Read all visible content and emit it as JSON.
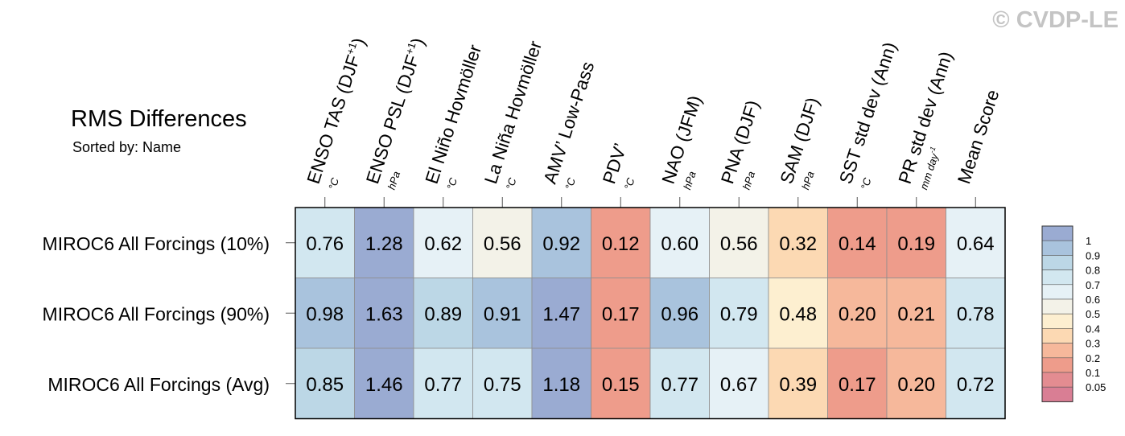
{
  "watermark": "© CVDP-LE",
  "title": "RMS Differences",
  "subtitle": "Sorted by: Name",
  "chart_data": {
    "type": "heatmap",
    "columns": [
      {
        "name": "ENSO TAS (DJF",
        "sup": "+1",
        "close": ")",
        "unit": "°C"
      },
      {
        "name": "ENSO PSL (DJF",
        "sup": "+1",
        "close": ")",
        "unit": "hPa"
      },
      {
        "name": "El Niño Hovmöller",
        "unit": "°C"
      },
      {
        "name": "La Niña Hovmöller",
        "unit": "°C"
      },
      {
        "name": "AMV’ Low-Pass",
        "unit": "°C"
      },
      {
        "name": "PDV’",
        "unit": "°C"
      },
      {
        "name": "NAO (JFM)",
        "unit": "hPa"
      },
      {
        "name": "PNA (DJF)",
        "unit": "hPa"
      },
      {
        "name": "SAM (DJF)",
        "unit": "hPa"
      },
      {
        "name": "SST std dev (Ann)",
        "unit": "°C"
      },
      {
        "name": "PR std dev (Ann)",
        "unit": "mm day",
        "unit_sup": "-1"
      },
      {
        "name": "Mean Score",
        "unit": ""
      }
    ],
    "rows": [
      {
        "label": "MIROC6 All Forcings (10%)",
        "values": [
          "0.76",
          "1.28",
          "0.62",
          "0.56",
          "0.92",
          "0.12",
          "0.60",
          "0.56",
          "0.32",
          "0.14",
          "0.19",
          "0.64"
        ]
      },
      {
        "label": "MIROC6 All Forcings (90%)",
        "values": [
          "0.98",
          "1.63",
          "0.89",
          "0.91",
          "1.47",
          "0.17",
          "0.96",
          "0.79",
          "0.48",
          "0.20",
          "0.21",
          "0.78"
        ]
      },
      {
        "label": "MIROC6 All Forcings (Avg)",
        "values": [
          "0.85",
          "1.46",
          "0.77",
          "0.75",
          "1.18",
          "0.15",
          "0.77",
          "0.67",
          "0.39",
          "0.17",
          "0.20",
          "0.72"
        ]
      }
    ],
    "colorbar": {
      "labels": [
        "1",
        "0.9",
        "0.8",
        "0.7",
        "0.6",
        "0.5",
        "0.4",
        "0.3",
        "0.2",
        "0.1",
        "0.05"
      ],
      "colors": [
        "#9aabd2",
        "#a9c3dd",
        "#bcd7e6",
        "#d2e7f0",
        "#e6f1f6",
        "#f3f2e8",
        "#fdefd0",
        "#fcd9b3",
        "#f6b89b",
        "#ee9c8b",
        "#e38c91",
        "#d97e94"
      ]
    }
  }
}
